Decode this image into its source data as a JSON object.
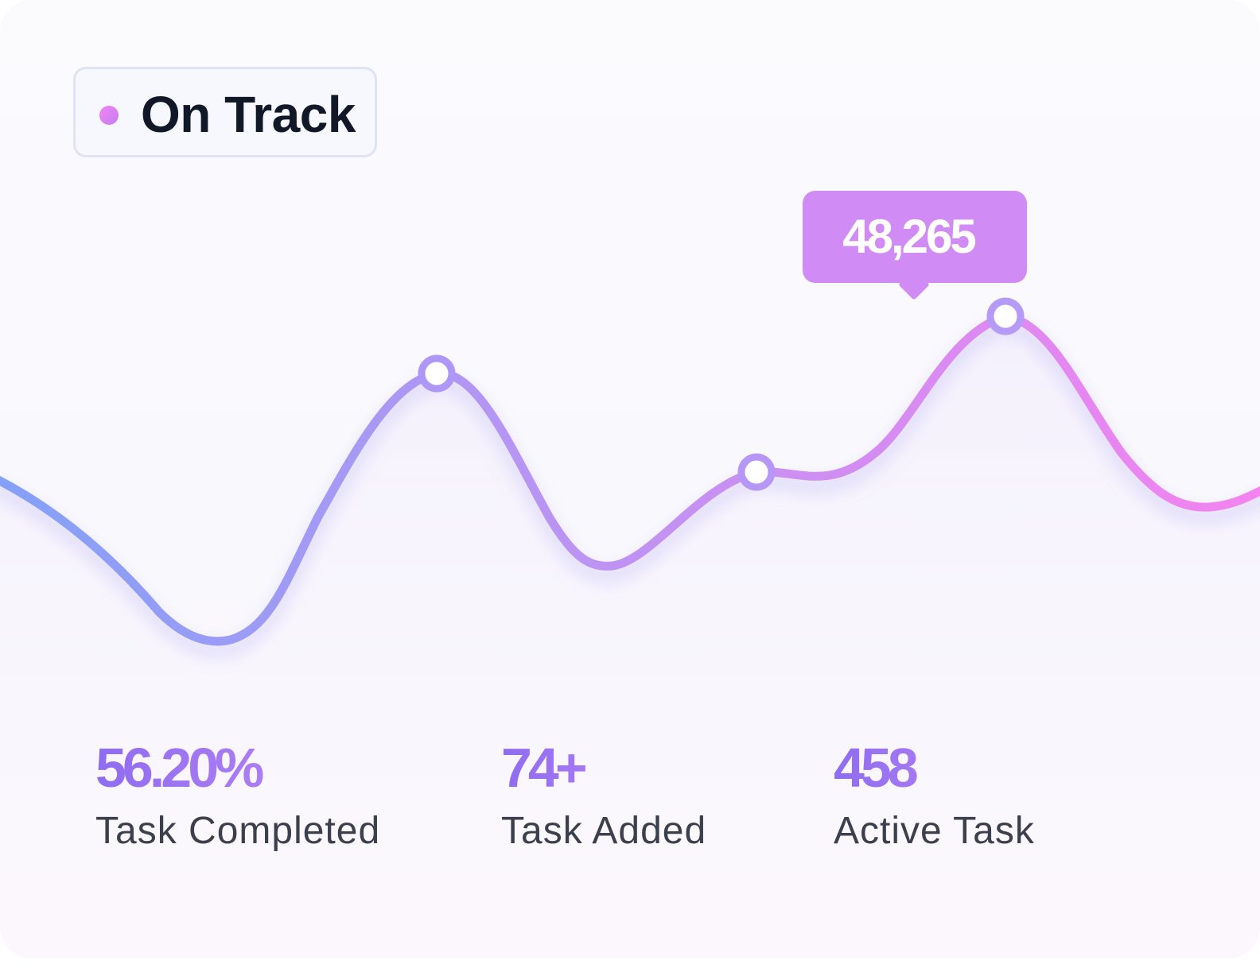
{
  "status_badge": {
    "label": "On Track",
    "dot_color": "#c37ef4"
  },
  "tooltip": {
    "value": "48,265",
    "color": "#d08bf4"
  },
  "line_colors": {
    "start": "#84a1f7",
    "end": "#f483f0"
  },
  "stats": [
    {
      "value": "56.20%",
      "label": "Task Completed"
    },
    {
      "value": "74+",
      "label": "Task Added"
    },
    {
      "value": "458",
      "label": "Active Task"
    }
  ]
}
